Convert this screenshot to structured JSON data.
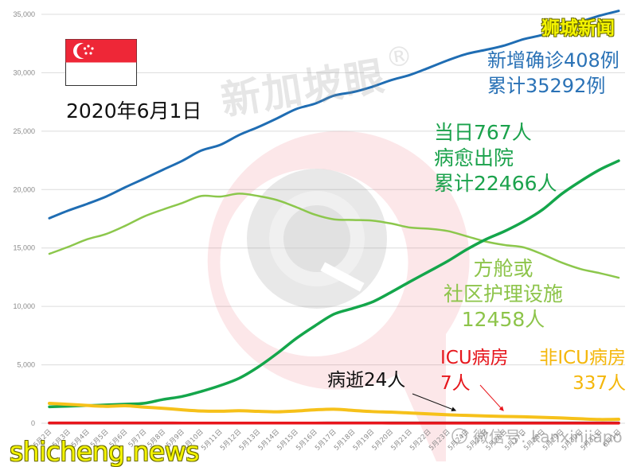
{
  "header": {
    "date": "2020年6月1日"
  },
  "brand": {
    "top_right": "狮城新闻",
    "bottom_left": "shicheng.news",
    "center_watermark": "新加坡眼",
    "registered_mark": "®",
    "wechat_watermark": "微信号: kanxinjiapo"
  },
  "icons": {
    "flag": "singapore-flag-icon",
    "logo": "eye-logo-watermark-icon",
    "wechat": "wechat-icon",
    "arrows": "arrow-icon"
  },
  "annotations": {
    "confirmed": {
      "line1": "新增确诊408例",
      "line2": "累计35292例",
      "color": "#2a72b6"
    },
    "discharged": {
      "line1": "当日767人",
      "line2": "病愈出院",
      "line3": "累计22466人",
      "color": "#1ba24c"
    },
    "community": {
      "line1": "方舱或",
      "line2": "社区护理设施",
      "line3": "12458人",
      "color": "#8dc44a"
    },
    "deaths": {
      "text": "病逝24人",
      "color": "#111111"
    },
    "icu": {
      "line1": "ICU病房",
      "line2": "7人",
      "color": "#e6161c"
    },
    "non_icu": {
      "line1": "非ICU病房",
      "line2": "337人",
      "color": "#f4b70c"
    }
  },
  "chart_data": {
    "type": "line",
    "title": "2020年6月1日",
    "xlabel": "",
    "ylabel": "",
    "ylim": [
      0,
      35000
    ],
    "y_ticks": [
      0,
      5000,
      10000,
      15000,
      20000,
      25000,
      30000,
      35000
    ],
    "y_tick_labels": [
      "0",
      "5,000",
      "10,000",
      "15,000",
      "20,000",
      "25,000",
      "30,000",
      "35,000"
    ],
    "grid": true,
    "legend": "none (inline annotations)",
    "categories": [
      "5月2日",
      "5月3日",
      "5月4日",
      "5月5日",
      "5月6日",
      "5月7日",
      "5月8日",
      "5月9日",
      "5月10日",
      "5月11日",
      "5月12日",
      "5月13日",
      "5月14日",
      "5月15日",
      "5月16日",
      "5月17日",
      "5月18日",
      "5月19日",
      "5月20日",
      "5月21日",
      "5月22日",
      "5月23日",
      "5月24日",
      "5月25日",
      "5月26日",
      "5月27日",
      "5月28日",
      "5月29日",
      "5月30日",
      "5月31日",
      "6月1日"
    ],
    "series": [
      {
        "name": "累计确诊",
        "color": "#1f6db3",
        "width": 3,
        "values": [
          17548,
          18205,
          18778,
          19410,
          20198,
          20939,
          21707,
          22460,
          23336,
          23822,
          24671,
          25346,
          26098,
          26891,
          27356,
          28038,
          28343,
          28794,
          29364,
          29812,
          30426,
          31068,
          31616,
          31960,
          32343,
          32876,
          33249,
          33860,
          34366,
          34884,
          35292
        ]
      },
      {
        "name": "方舱或社区护理设施",
        "color": "#8cc74c",
        "width": 2.5,
        "values": [
          14500,
          15100,
          15750,
          16200,
          16900,
          17700,
          18300,
          18850,
          19450,
          19400,
          19650,
          19450,
          19100,
          18500,
          17850,
          17450,
          17400,
          17350,
          17100,
          16750,
          16650,
          16450,
          16000,
          15550,
          15250,
          15050,
          14450,
          13750,
          13200,
          12850,
          12458
        ]
      },
      {
        "name": "累计病愈出院",
        "color": "#14a64b",
        "width": 3.5,
        "values": [
          1408,
          1457,
          1519,
          1571,
          1634,
          1712,
          2040,
          2296,
          2721,
          3225,
          3851,
          4809,
          5973,
          7248,
          8342,
          9340,
          9835,
          10365,
          11207,
          12117,
          12995,
          13882,
          14876,
          15738,
          16444,
          17276,
          18294,
          19631,
          20727,
          21699,
          22466
        ]
      },
      {
        "name": "非ICU病房",
        "color": "#f6c11a",
        "width": 4,
        "values": [
          1700,
          1620,
          1520,
          1450,
          1500,
          1380,
          1280,
          1150,
          1050,
          1030,
          1070,
          1020,
          980,
          1050,
          1150,
          1200,
          1100,
          1000,
          950,
          880,
          800,
          720,
          670,
          620,
          580,
          550,
          500,
          450,
          380,
          320,
          337
        ]
      },
      {
        "name": "病逝",
        "color": "#333333",
        "width": 3.5,
        "values": [
          17,
          17,
          18,
          18,
          18,
          18,
          20,
          20,
          20,
          20,
          20,
          20,
          21,
          21,
          21,
          22,
          22,
          22,
          22,
          22,
          22,
          22,
          22,
          23,
          23,
          23,
          23,
          23,
          23,
          23,
          24
        ]
      },
      {
        "name": "ICU病房",
        "color": "#e8161c",
        "width": 3.5,
        "values": [
          24,
          22,
          22,
          22,
          22,
          22,
          22,
          21,
          20,
          20,
          19,
          20,
          19,
          18,
          17,
          16,
          14,
          14,
          12,
          12,
          11,
          10,
          9,
          10,
          9,
          9,
          8,
          8,
          8,
          7,
          7
        ]
      }
    ],
    "annotations": [
      {
        "text": "新增确诊408例 累计35292例",
        "series": "累计确诊"
      },
      {
        "text": "当日767人 病愈出院 累计22466人",
        "series": "累计病愈出院"
      },
      {
        "text": "方舱或 社区护理设施 12458人",
        "series": "方舱或社区护理设施"
      },
      {
        "text": "病逝24人",
        "series": "病逝"
      },
      {
        "text": "ICU病房 7人",
        "series": "ICU病房"
      },
      {
        "text": "非ICU病房 337人",
        "series": "非ICU病房"
      }
    ]
  }
}
